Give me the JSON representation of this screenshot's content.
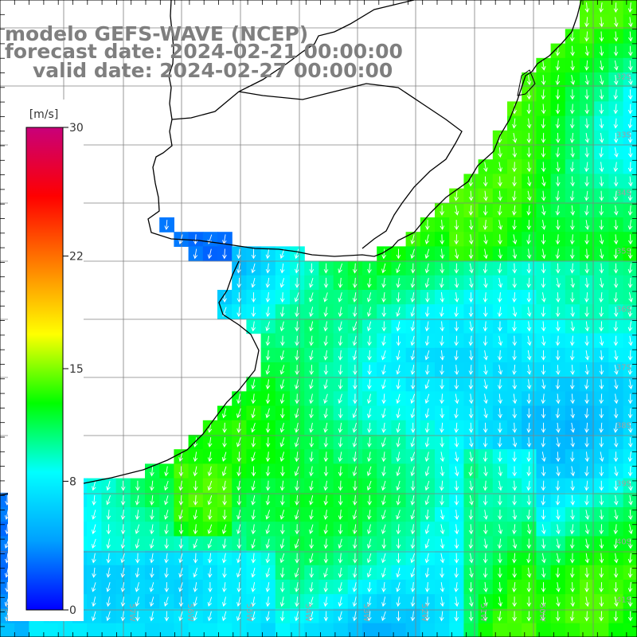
{
  "title": {
    "line1": "modelo GEFS-WAVE (NCEP)",
    "line2": "forecast date: 2024-02-21 00:00:00",
    "line3": "valid date: 2024-02-27 00:00:00"
  },
  "colorbar": {
    "unit": "[m/s]",
    "ticks": [
      {
        "value": 30,
        "label": "30"
      },
      {
        "value": 22,
        "label": "22"
      },
      {
        "value": 15,
        "label": "15"
      },
      {
        "value": 8,
        "label": "8"
      },
      {
        "value": 0,
        "label": "0"
      }
    ],
    "min": 0,
    "max": 30,
    "stops": [
      "#0000ff",
      "#00a0ff",
      "#00ffff",
      "#00ff00",
      "#ffff00",
      "#ff8000",
      "#ff0000",
      "#c8007a"
    ]
  },
  "grid": {
    "lat_labels": [
      "32S",
      "33S",
      "34S",
      "35S",
      "36S",
      "37S",
      "38S",
      "39S",
      "40S",
      "41S"
    ],
    "lon_labels": [
      "59W",
      "58W",
      "57W",
      "56W",
      "55W",
      "54W",
      "53W",
      "52W",
      "51W",
      "50W"
    ]
  },
  "wind_field": {
    "direction": "from north-northeast",
    "speed_range_ms": [
      5,
      13
    ],
    "colors": {
      "land": "#ffffff",
      "coast": "#000000",
      "arrows": "#ffffff",
      "grid": "#808080"
    }
  }
}
